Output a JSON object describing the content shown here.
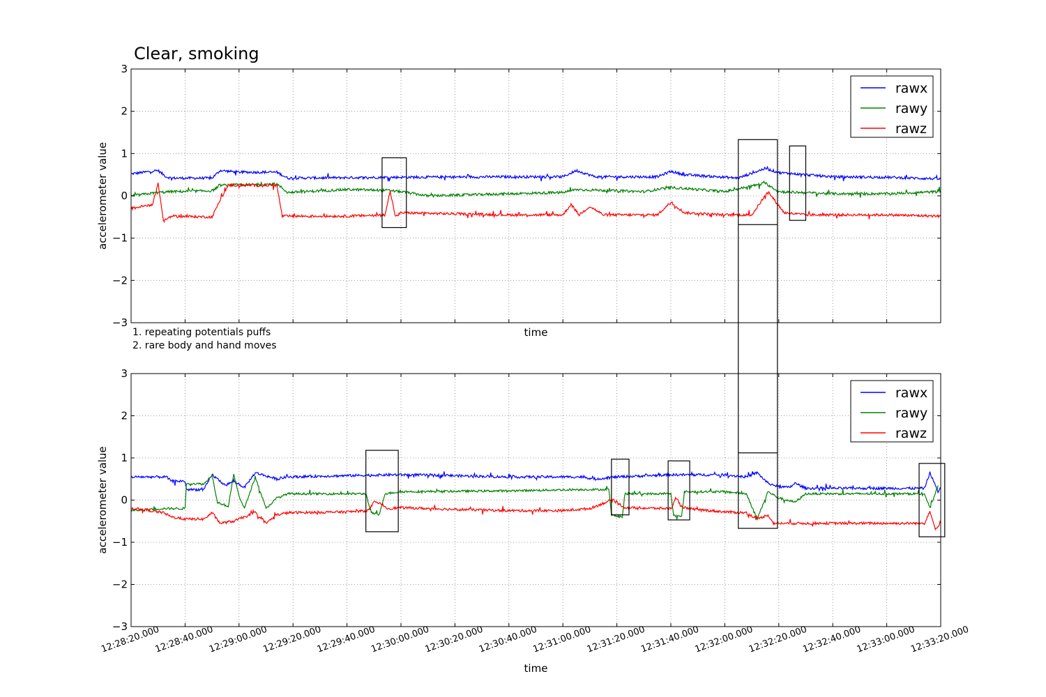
{
  "figure": {
    "title": "Clear, smoking",
    "notes": [
      "1. repeating potentials puffs",
      "2. rare body and hand moves"
    ],
    "colors": {
      "rawx": "#0000ff",
      "rawy": "#008000",
      "rawz": "#ff0000",
      "box": "#000000",
      "grid": "#808080"
    }
  },
  "chart_data": [
    {
      "type": "line",
      "panel": "top",
      "xlabel": "time",
      "ylabel": "accelerometer value",
      "xlim": [
        "12:28:20.000",
        "12:33:20.000"
      ],
      "ylim": [
        -3,
        3
      ],
      "yticks": [
        -3,
        -2,
        -1,
        0,
        1,
        2,
        3
      ],
      "xticks": [
        "12:28:20.000",
        "12:28:40.000",
        "12:29:00.000",
        "12:29:20.000",
        "12:29:40.000",
        "12:30:00.000",
        "12:30:20.000",
        "12:30:40.000",
        "12:31:00.000",
        "12:31:20.000",
        "12:31:40.000",
        "12:32:00.000",
        "12:32:20.000",
        "12:32:40.000",
        "12:33:00.000",
        "12:33:20.000"
      ],
      "show_xtick_labels": false,
      "grid": true,
      "legend": "top-right",
      "series": [
        {
          "name": "rawx",
          "color": "#0000ff",
          "noise": 0.03,
          "points": [
            [
              "12:28:20.000",
              0.52
            ],
            [
              "12:28:30.000",
              0.6
            ],
            [
              "12:28:33.000",
              0.45
            ],
            [
              "12:28:35.000",
              0.42
            ],
            [
              "12:28:50.000",
              0.42
            ],
            [
              "12:28:53.000",
              0.6
            ],
            [
              "12:29:00.000",
              0.56
            ],
            [
              "12:29:14.000",
              0.56
            ],
            [
              "12:29:18.000",
              0.42
            ],
            [
              "12:29:40.000",
              0.43
            ],
            [
              "12:30:00.000",
              0.44
            ],
            [
              "12:30:40.000",
              0.45
            ],
            [
              "12:31:00.000",
              0.45
            ],
            [
              "12:31:05.000",
              0.6
            ],
            [
              "12:31:12.000",
              0.45
            ],
            [
              "12:31:35.000",
              0.45
            ],
            [
              "12:31:40.000",
              0.58
            ],
            [
              "12:31:45.000",
              0.5
            ],
            [
              "12:32:05.000",
              0.42
            ],
            [
              "12:32:15.000",
              0.65
            ],
            [
              "12:32:20.000",
              0.55
            ],
            [
              "12:32:30.000",
              0.5
            ],
            [
              "12:32:40.000",
              0.45
            ],
            [
              "12:33:00.000",
              0.44
            ],
            [
              "12:33:20.000",
              0.4
            ]
          ]
        },
        {
          "name": "rawy",
          "color": "#008000",
          "noise": 0.03,
          "points": [
            [
              "12:28:20.000",
              0.0
            ],
            [
              "12:28:30.000",
              0.08
            ],
            [
              "12:28:35.000",
              0.1
            ],
            [
              "12:28:50.000",
              0.12
            ],
            [
              "12:28:53.000",
              0.25
            ],
            [
              "12:29:14.000",
              0.28
            ],
            [
              "12:29:18.000",
              0.08
            ],
            [
              "12:29:40.000",
              0.15
            ],
            [
              "12:29:55.000",
              0.13
            ],
            [
              "12:30:00.000",
              0.1
            ],
            [
              "12:30:10.000",
              0.0
            ],
            [
              "12:30:40.000",
              0.05
            ],
            [
              "12:31:00.000",
              0.08
            ],
            [
              "12:31:05.000",
              0.15
            ],
            [
              "12:31:30.000",
              0.1
            ],
            [
              "12:31:40.000",
              0.2
            ],
            [
              "12:32:00.000",
              0.1
            ],
            [
              "12:32:15.000",
              0.3
            ],
            [
              "12:32:20.000",
              0.1
            ],
            [
              "12:32:40.000",
              0.05
            ],
            [
              "12:33:00.000",
              0.05
            ],
            [
              "12:33:20.000",
              0.1
            ]
          ]
        },
        {
          "name": "rawz",
          "color": "#ff0000",
          "noise": 0.03,
          "points": [
            [
              "12:28:20.000",
              -0.3
            ],
            [
              "12:28:28.000",
              -0.2
            ],
            [
              "12:28:30.000",
              0.3
            ],
            [
              "12:28:32.000",
              -0.6
            ],
            [
              "12:28:35.000",
              -0.48
            ],
            [
              "12:28:50.000",
              -0.5
            ],
            [
              "12:28:53.000",
              -0.1
            ],
            [
              "12:28:56.000",
              0.25
            ],
            [
              "12:29:14.000",
              0.25
            ],
            [
              "12:29:16.000",
              -0.48
            ],
            [
              "12:29:40.000",
              -0.48
            ],
            [
              "12:29:54.000",
              -0.45
            ],
            [
              "12:29:56.000",
              0.1
            ],
            [
              "12:29:58.000",
              -0.5
            ],
            [
              "12:30:00.000",
              -0.4
            ],
            [
              "12:30:40.000",
              -0.45
            ],
            [
              "12:31:00.000",
              -0.45
            ],
            [
              "12:31:03.000",
              -0.2
            ],
            [
              "12:31:06.000",
              -0.45
            ],
            [
              "12:31:10.000",
              -0.25
            ],
            [
              "12:31:15.000",
              -0.45
            ],
            [
              "12:31:35.000",
              -0.45
            ],
            [
              "12:31:40.000",
              -0.15
            ],
            [
              "12:31:45.000",
              -0.4
            ],
            [
              "12:32:00.000",
              -0.45
            ],
            [
              "12:32:10.000",
              -0.45
            ],
            [
              "12:32:16.000",
              0.1
            ],
            [
              "12:32:22.000",
              -0.4
            ],
            [
              "12:32:30.000",
              -0.45
            ],
            [
              "12:33:00.000",
              -0.45
            ],
            [
              "12:33:20.000",
              -0.48
            ]
          ]
        }
      ],
      "boxes": [
        {
          "x0": "12:29:53.000",
          "x1": "12:30:02.000",
          "y0": -0.75,
          "y1": 0.9
        },
        {
          "x0": "12:32:05.000",
          "x1": "12:32:19.500",
          "y0": -0.68,
          "y1": 1.33
        },
        {
          "x0": "12:32:24.000",
          "x1": "12:32:30.000",
          "y0": -0.58,
          "y1": 1.18
        }
      ]
    },
    {
      "type": "line",
      "panel": "bottom",
      "xlabel": "time",
      "ylabel": "accelerometer value",
      "xlim": [
        "12:28:20.000",
        "12:33:20.000"
      ],
      "ylim": [
        -3,
        3
      ],
      "yticks": [
        -3,
        -2,
        -1,
        0,
        1,
        2,
        3
      ],
      "xticks": [
        "12:28:20.000",
        "12:28:40.000",
        "12:29:00.000",
        "12:29:20.000",
        "12:29:40.000",
        "12:30:00.000",
        "12:30:20.000",
        "12:30:40.000",
        "12:31:00.000",
        "12:31:20.000",
        "12:31:40.000",
        "12:32:00.000",
        "12:32:20.000",
        "12:32:40.000",
        "12:33:00.000",
        "12:33:20.000"
      ],
      "show_xtick_labels": true,
      "grid": true,
      "legend": "top-right",
      "series": [
        {
          "name": "rawx",
          "color": "#0000ff",
          "noise": 0.03,
          "points": [
            [
              "12:28:20.000",
              0.55
            ],
            [
              "12:28:33.000",
              0.55
            ],
            [
              "12:28:35.000",
              0.45
            ],
            [
              "12:28:40.000",
              0.45
            ],
            [
              "12:28:40.500",
              0.25
            ],
            [
              "12:28:47.000",
              0.25
            ],
            [
              "12:28:50.000",
              0.6
            ],
            [
              "12:28:55.000",
              0.35
            ],
            [
              "12:28:58.000",
              0.45
            ],
            [
              "12:29:02.000",
              0.3
            ],
            [
              "12:29:06.000",
              0.65
            ],
            [
              "12:29:14.000",
              0.5
            ],
            [
              "12:29:18.000",
              0.55
            ],
            [
              "12:29:40.000",
              0.58
            ],
            [
              "12:29:56.000",
              0.6
            ],
            [
              "12:30:05.000",
              0.6
            ],
            [
              "12:30:40.000",
              0.55
            ],
            [
              "12:31:07.000",
              0.55
            ],
            [
              "12:31:12.000",
              0.5
            ],
            [
              "12:31:20.000",
              0.55
            ],
            [
              "12:31:40.000",
              0.6
            ],
            [
              "12:32:00.000",
              0.6
            ],
            [
              "12:32:08.000",
              0.55
            ],
            [
              "12:32:12.000",
              0.65
            ],
            [
              "12:32:16.000",
              0.4
            ],
            [
              "12:32:20.000",
              0.32
            ],
            [
              "12:32:24.000",
              0.3
            ],
            [
              "12:32:26.000",
              0.4
            ],
            [
              "12:32:30.000",
              0.28
            ],
            [
              "12:32:40.000",
              0.28
            ],
            [
              "12:33:00.000",
              0.28
            ],
            [
              "12:33:14.000",
              0.28
            ],
            [
              "12:33:16.000",
              0.65
            ],
            [
              "12:33:19.000",
              0.2
            ],
            [
              "12:33:20.000",
              0.3
            ]
          ]
        },
        {
          "name": "rawy",
          "color": "#008000",
          "noise": 0.025,
          "points": [
            [
              "12:28:20.000",
              -0.25
            ],
            [
              "12:28:32.000",
              -0.2
            ],
            [
              "12:28:40.000",
              -0.2
            ],
            [
              "12:28:40.500",
              0.4
            ],
            [
              "12:28:47.000",
              0.38
            ],
            [
              "12:28:50.000",
              0.6
            ],
            [
              "12:28:52.000",
              -0.05
            ],
            [
              "12:28:56.000",
              -0.15
            ],
            [
              "12:28:58.000",
              0.6
            ],
            [
              "12:29:00.000",
              0.1
            ],
            [
              "12:29:02.000",
              -0.2
            ],
            [
              "12:29:06.000",
              0.55
            ],
            [
              "12:29:10.000",
              -0.2
            ],
            [
              "12:29:14.000",
              0.05
            ],
            [
              "12:29:18.000",
              0.15
            ],
            [
              "12:29:40.000",
              0.15
            ],
            [
              "12:29:47.000",
              0.15
            ],
            [
              "12:29:49.000",
              -0.3
            ],
            [
              "12:29:52.000",
              -0.35
            ],
            [
              "12:29:54.000",
              0.15
            ],
            [
              "12:30:00.000",
              0.2
            ],
            [
              "12:30:40.000",
              0.22
            ],
            [
              "12:31:05.000",
              0.25
            ],
            [
              "12:31:17.000",
              0.25
            ],
            [
              "12:31:18.000",
              -0.35
            ],
            [
              "12:31:22.000",
              -0.4
            ],
            [
              "12:31:23.000",
              0.15
            ],
            [
              "12:31:40.000",
              0.15
            ],
            [
              "12:31:41.000",
              -0.35
            ],
            [
              "12:31:44.000",
              -0.4
            ],
            [
              "12:31:45.000",
              0.2
            ],
            [
              "12:32:00.000",
              0.2
            ],
            [
              "12:32:08.000",
              0.15
            ],
            [
              "12:32:12.000",
              -0.45
            ],
            [
              "12:32:16.000",
              0.2
            ],
            [
              "12:32:20.000",
              0.05
            ],
            [
              "12:32:26.000",
              -0.05
            ],
            [
              "12:32:30.000",
              0.15
            ],
            [
              "12:32:40.000",
              0.15
            ],
            [
              "12:33:00.000",
              0.15
            ],
            [
              "12:33:14.000",
              0.15
            ],
            [
              "12:33:16.000",
              -0.2
            ],
            [
              "12:33:19.000",
              0.35
            ]
          ]
        },
        {
          "name": "rawz",
          "color": "#ff0000",
          "noise": 0.03,
          "points": [
            [
              "12:28:20.000",
              -0.2
            ],
            [
              "12:28:22.000",
              -0.2
            ],
            [
              "12:28:32.000",
              -0.3
            ],
            [
              "12:28:35.000",
              -0.4
            ],
            [
              "12:28:40.000",
              -0.45
            ],
            [
              "12:28:47.000",
              -0.45
            ],
            [
              "12:28:50.000",
              -0.3
            ],
            [
              "12:28:53.000",
              -0.55
            ],
            [
              "12:28:58.000",
              -0.5
            ],
            [
              "12:29:02.000",
              -0.4
            ],
            [
              "12:29:06.000",
              -0.3
            ],
            [
              "12:29:10.000",
              -0.55
            ],
            [
              "12:29:14.000",
              -0.35
            ],
            [
              "12:29:18.000",
              -0.3
            ],
            [
              "12:29:40.000",
              -0.28
            ],
            [
              "12:29:48.000",
              -0.25
            ],
            [
              "12:29:50.000",
              -0.05
            ],
            [
              "12:29:53.000",
              -0.1
            ],
            [
              "12:29:55.000",
              -0.2
            ],
            [
              "12:30:00.000",
              -0.18
            ],
            [
              "12:30:20.000",
              -0.22
            ],
            [
              "12:30:40.000",
              -0.25
            ],
            [
              "12:31:00.000",
              -0.25
            ],
            [
              "12:31:10.000",
              -0.2
            ],
            [
              "12:31:18.000",
              0.0
            ],
            [
              "12:31:21.000",
              -0.1
            ],
            [
              "12:31:23.000",
              -0.18
            ],
            [
              "12:31:40.000",
              -0.2
            ],
            [
              "12:31:42.000",
              0.05
            ],
            [
              "12:31:44.000",
              -0.15
            ],
            [
              "12:31:46.000",
              -0.2
            ],
            [
              "12:32:00.000",
              -0.28
            ],
            [
              "12:32:08.000",
              -0.3
            ],
            [
              "12:32:12.000",
              -0.45
            ],
            [
              "12:32:16.000",
              -0.35
            ],
            [
              "12:32:18.000",
              -0.55
            ],
            [
              "12:32:30.000",
              -0.55
            ],
            [
              "12:33:00.000",
              -0.55
            ],
            [
              "12:33:14.000",
              -0.55
            ],
            [
              "12:33:16.000",
              -0.25
            ],
            [
              "12:33:18.000",
              -0.7
            ],
            [
              "12:33:20.000",
              -0.55
            ]
          ]
        }
      ],
      "boxes": [
        {
          "x0": "12:29:47.000",
          "x1": "12:29:59.000",
          "y0": -0.75,
          "y1": 1.18
        },
        {
          "x0": "12:31:18.000",
          "x1": "12:31:24.500",
          "y0": -0.35,
          "y1": 0.97
        },
        {
          "x0": "12:31:39.000",
          "x1": "12:31:47.000",
          "y0": -0.47,
          "y1": 0.93
        },
        {
          "x0": "12:32:05.000",
          "x1": "12:32:19.500",
          "y0": -0.67,
          "y1": 1.12
        },
        {
          "x0": "12:33:12.000",
          "x1": "12:33:21.500",
          "y0": -0.87,
          "y1": 0.87
        }
      ]
    }
  ]
}
